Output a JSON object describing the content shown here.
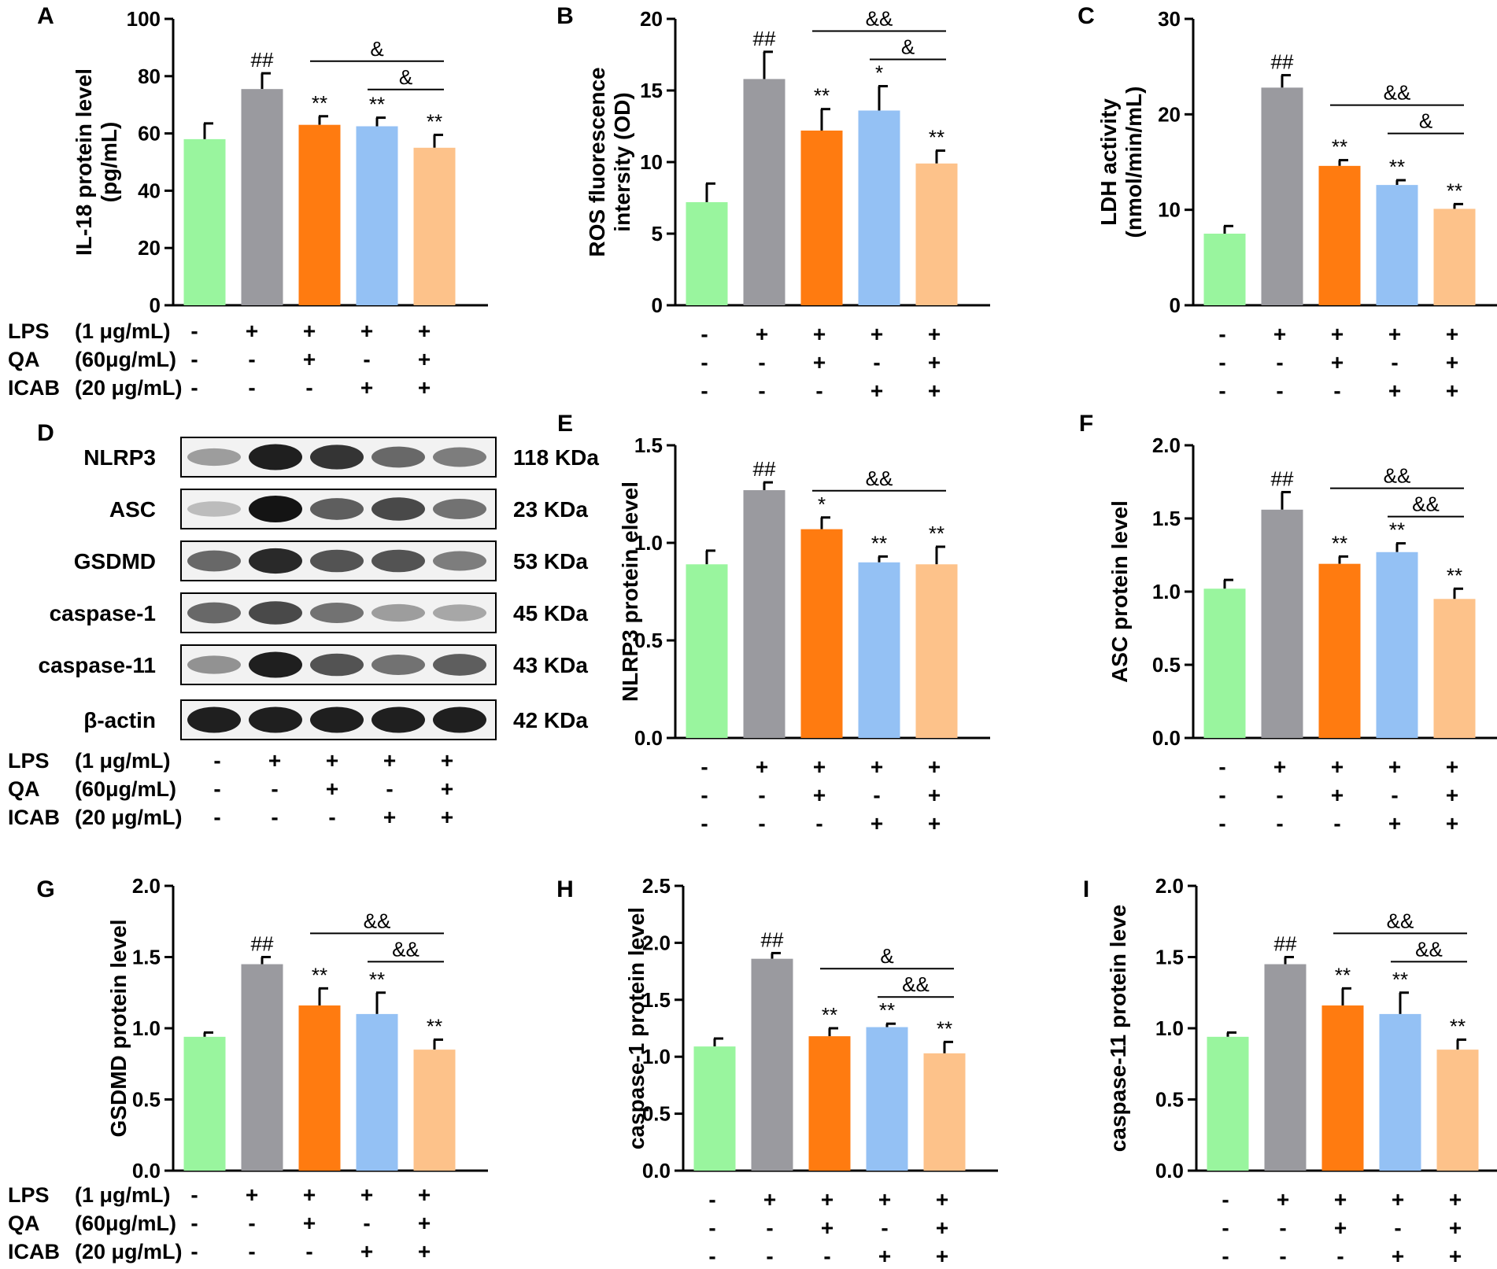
{
  "colors": [
    "#99f59e",
    "#9a9a9f",
    "#ff7b10",
    "#94c1f4",
    "#fdc28a"
  ],
  "conditions": {
    "rows": [
      "LPS",
      "QA",
      "ICAB"
    ],
    "concs": [
      "(1 μg/mL)",
      "(60μg/mL)",
      "(20 μg/mL)"
    ],
    "signs": [
      [
        "-",
        "+",
        "+",
        "+",
        "+"
      ],
      [
        "-",
        "-",
        "+",
        "-",
        "+"
      ],
      [
        "-",
        "-",
        "-",
        "+",
        "+"
      ]
    ]
  },
  "western_blot": {
    "label": "D",
    "proteins": [
      {
        "name": "NLRP3",
        "mw": "118 KDa",
        "intensity": [
          0.35,
          0.95,
          0.85,
          0.6,
          0.5
        ]
      },
      {
        "name": "ASC",
        "mw": "23 KDa",
        "intensity": [
          0.2,
          1.0,
          0.65,
          0.75,
          0.55
        ]
      },
      {
        "name": "GSDMD",
        "mw": "53 KDa",
        "intensity": [
          0.6,
          0.9,
          0.7,
          0.7,
          0.5
        ]
      },
      {
        "name": "caspase-1",
        "mw": "45 KDa",
        "intensity": [
          0.6,
          0.75,
          0.55,
          0.35,
          0.3
        ]
      },
      {
        "name": "caspase-11",
        "mw": "43 KDa",
        "intensity": [
          0.4,
          0.95,
          0.7,
          0.55,
          0.65
        ]
      },
      {
        "name": "β-actin",
        "mw": "42 KDa",
        "intensity": [
          0.95,
          0.95,
          0.95,
          0.95,
          0.95
        ]
      }
    ]
  },
  "chart_data": [
    {
      "type": "bar",
      "label": "A",
      "ylabel": [
        "IL-18 protein  level",
        "(pg/mL)"
      ],
      "ylim": [
        0,
        100
      ],
      "ticks": [
        "0",
        "20",
        "40",
        "60",
        "80",
        "100"
      ],
      "values": [
        58,
        75.5,
        63,
        62.5,
        55
      ],
      "errors": [
        5.5,
        5.5,
        3,
        3,
        4.5
      ],
      "annotations": [
        "",
        "##",
        "**",
        "**",
        "**"
      ],
      "brackets": [
        {
          "from": 2,
          "to": 4,
          "label": "&"
        },
        {
          "from": 3,
          "to": 4,
          "label": "&"
        }
      ]
    },
    {
      "type": "bar",
      "label": "B",
      "ylabel": [
        "ROS  fluorescence",
        "intersity (OD)"
      ],
      "ylim": [
        0,
        20
      ],
      "ticks": [
        "0",
        "5",
        "10",
        "15",
        "20"
      ],
      "values": [
        7.2,
        15.8,
        12.2,
        13.6,
        9.9
      ],
      "errors": [
        1.3,
        1.9,
        1.5,
        1.7,
        0.9
      ],
      "annotations": [
        "",
        "##",
        "**",
        "*",
        "**"
      ],
      "brackets": [
        {
          "from": 2,
          "to": 4,
          "label": "&&"
        },
        {
          "from": 3,
          "to": 4,
          "label": "&"
        }
      ]
    },
    {
      "type": "bar",
      "label": "C",
      "ylabel": [
        "LDH activity",
        "(nmol/min/mL)"
      ],
      "ylim": [
        0,
        30
      ],
      "ticks": [
        "0",
        "10",
        "20",
        "30"
      ],
      "values": [
        7.5,
        22.8,
        14.6,
        12.6,
        10.1
      ],
      "errors": [
        0.8,
        1.3,
        0.6,
        0.5,
        0.5
      ],
      "annotations": [
        "",
        "##",
        "**",
        "**",
        "**"
      ],
      "brackets": [
        {
          "from": 2,
          "to": 4,
          "label": "&&"
        },
        {
          "from": 3,
          "to": 4,
          "label": "&"
        }
      ]
    },
    {
      "type": "bar",
      "label": "E",
      "ylabel": [
        "NLRP3 protein elevel"
      ],
      "ylim": [
        0,
        1.5
      ],
      "ticks": [
        "0.0",
        "0.5",
        "1.0",
        "1.5"
      ],
      "values": [
        0.89,
        1.27,
        1.07,
        0.9,
        0.89
      ],
      "errors": [
        0.07,
        0.04,
        0.06,
        0.03,
        0.09
      ],
      "annotations": [
        "",
        "##",
        "*",
        "**",
        "**"
      ],
      "brackets": [
        {
          "from": 2,
          "to": 4,
          "label": "&&"
        }
      ]
    },
    {
      "type": "bar",
      "label": "F",
      "ylabel": [
        "ASC protein level"
      ],
      "ylim": [
        0,
        2.0
      ],
      "ticks": [
        "0.0",
        "0.5",
        "1.0",
        "1.5",
        "2.0"
      ],
      "values": [
        1.02,
        1.56,
        1.19,
        1.27,
        0.95
      ],
      "errors": [
        0.06,
        0.12,
        0.05,
        0.06,
        0.07
      ],
      "annotations": [
        "",
        "##",
        "**",
        "**",
        "**"
      ],
      "brackets": [
        {
          "from": 2,
          "to": 4,
          "label": "&&"
        },
        {
          "from": 3,
          "to": 4,
          "label": "&&"
        }
      ]
    },
    {
      "type": "bar",
      "label": "G",
      "ylabel": [
        "GSDMD protein level"
      ],
      "ylim": [
        0,
        2.0
      ],
      "ticks": [
        "0.0",
        "0.5",
        "1.0",
        "1.5",
        "2.0"
      ],
      "values": [
        0.94,
        1.45,
        1.16,
        1.1,
        0.85
      ],
      "errors": [
        0.03,
        0.05,
        0.12,
        0.15,
        0.07
      ],
      "annotations": [
        "",
        "##",
        "**",
        "**",
        "**"
      ],
      "brackets": [
        {
          "from": 2,
          "to": 4,
          "label": "&&"
        },
        {
          "from": 3,
          "to": 4,
          "label": "&&"
        }
      ]
    },
    {
      "type": "bar",
      "label": "H",
      "ylabel": [
        "caspase-1  protein level"
      ],
      "ylim": [
        0,
        2.5
      ],
      "ticks": [
        "0.0",
        "0.5",
        "1.0",
        "1.5",
        "2.0",
        "2.5"
      ],
      "values": [
        1.09,
        1.86,
        1.18,
        1.26,
        1.03
      ],
      "errors": [
        0.07,
        0.05,
        0.07,
        0.03,
        0.1
      ],
      "annotations": [
        "",
        "##",
        "**",
        "**",
        "**"
      ],
      "brackets": [
        {
          "from": 2,
          "to": 4,
          "label": "&"
        },
        {
          "from": 3,
          "to": 4,
          "label": "&&"
        }
      ]
    },
    {
      "type": "bar",
      "label": "I",
      "ylabel": [
        "caspase-11 protein leve"
      ],
      "ylim": [
        0,
        2.0
      ],
      "ticks": [
        "0.0",
        "0.5",
        "1.0",
        "1.5",
        "2.0"
      ],
      "values": [
        0.94,
        1.45,
        1.16,
        1.1,
        0.85
      ],
      "errors": [
        0.03,
        0.05,
        0.12,
        0.15,
        0.07
      ],
      "annotations": [
        "",
        "##",
        "**",
        "**",
        "**"
      ],
      "brackets": [
        {
          "from": 2,
          "to": 4,
          "label": "&&"
        },
        {
          "from": 3,
          "to": 4,
          "label": "&&"
        }
      ]
    }
  ]
}
